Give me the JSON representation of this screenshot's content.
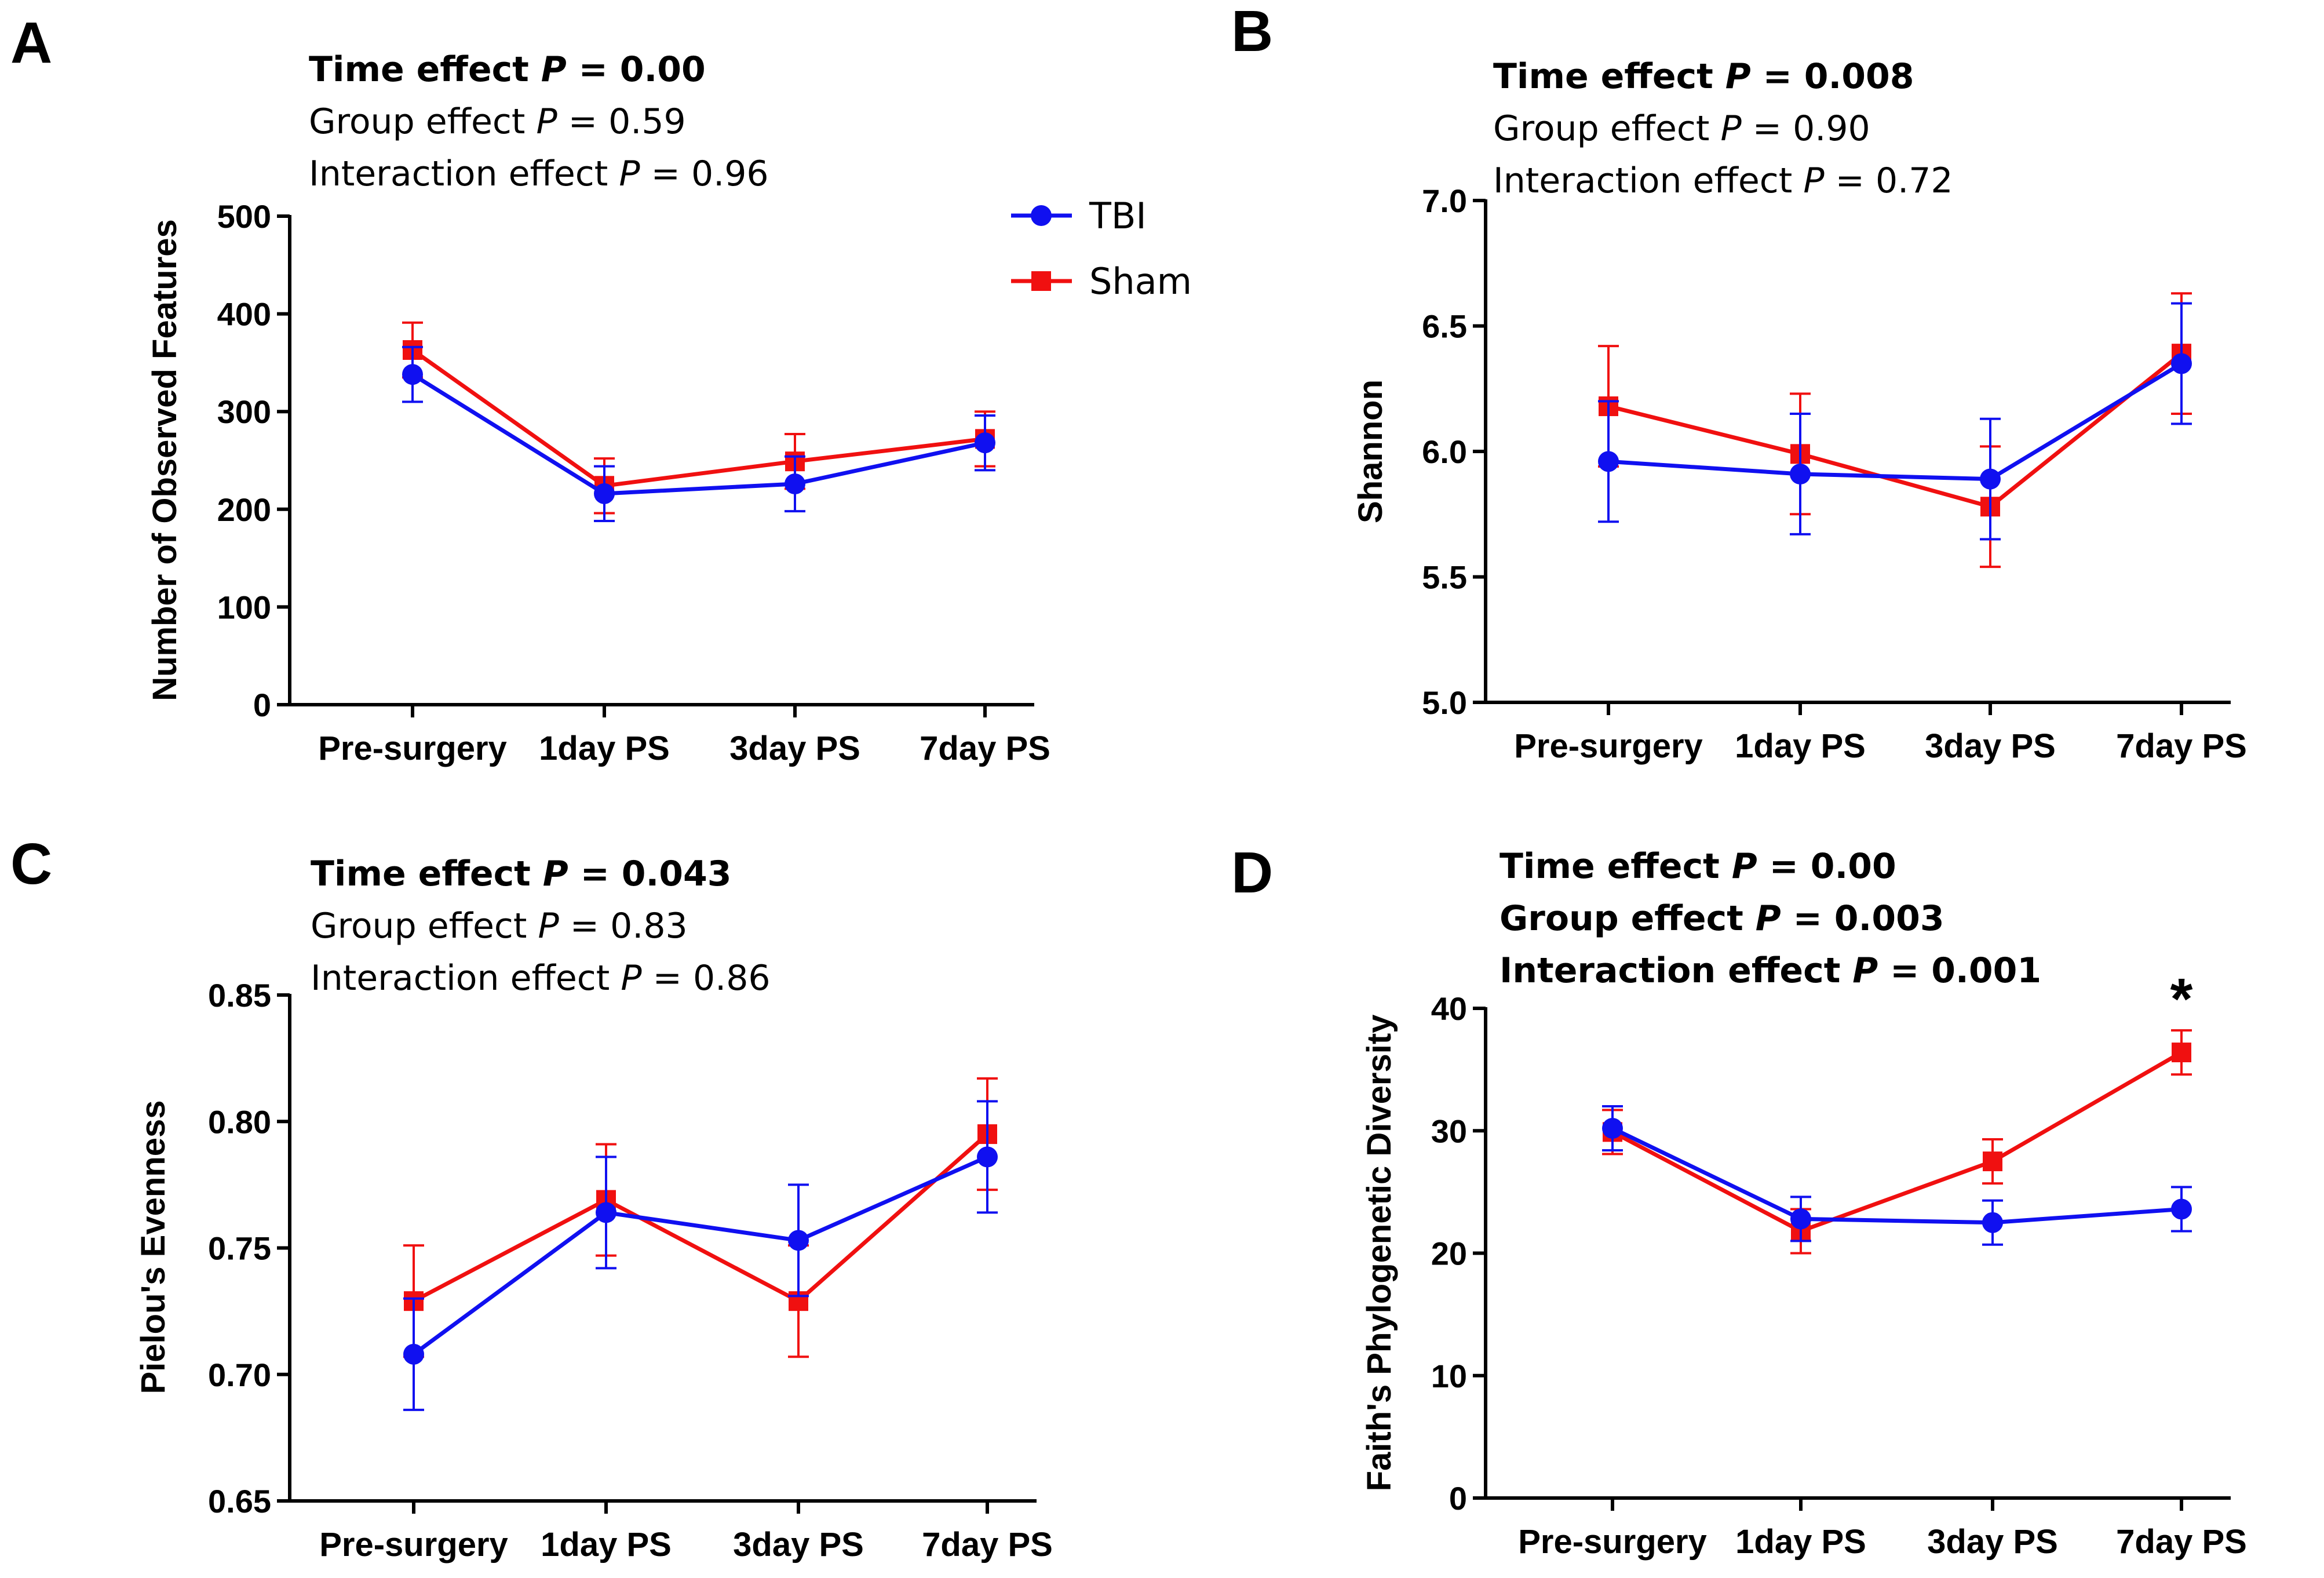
{
  "figure": {
    "legend": {
      "items": [
        {
          "name": "TBI",
          "color": "#1010f0",
          "marker": "circle"
        },
        {
          "name": "Sham",
          "color": "#f01010",
          "marker": "square"
        }
      ]
    }
  },
  "chart_data": [
    {
      "panel": "A",
      "type": "line",
      "title": "",
      "xlabel": "",
      "ylabel": "Number of Observed Features",
      "categories": [
        "Pre-surgery",
        "1day PS",
        "3day PS",
        "7day PS"
      ],
      "ylim": [
        0,
        500
      ],
      "yticks": [
        0,
        100,
        200,
        300,
        400,
        500
      ],
      "ytick_labels": [
        "0",
        "100",
        "200",
        "300",
        "400",
        "500"
      ],
      "series": [
        {
          "name": "TBI",
          "color": "#1010f0",
          "marker": "circle",
          "values": [
            338,
            216,
            226,
            268
          ],
          "errors": [
            28,
            28,
            28,
            28
          ]
        },
        {
          "name": "Sham",
          "color": "#f01010",
          "marker": "square",
          "values": [
            363,
            224,
            249,
            272
          ],
          "errors": [
            28,
            28,
            28,
            28
          ]
        }
      ],
      "stats": [
        {
          "label": "Time effect",
          "p_prefix": "P",
          "value": " = 0.00",
          "bold": true
        },
        {
          "label": "Group effect",
          "p_prefix": "P",
          "value": " = 0.59",
          "bold": false
        },
        {
          "label": "Interaction effect",
          "p_prefix": "P",
          "value": " = 0.96",
          "bold": false
        }
      ],
      "annotations": [],
      "show_legend": true
    },
    {
      "panel": "B",
      "type": "line",
      "title": "",
      "xlabel": "",
      "ylabel": "Shannon",
      "categories": [
        "Pre-surgery",
        "1day PS",
        "3day PS",
        "7day PS"
      ],
      "ylim": [
        5.0,
        7.0
      ],
      "yticks": [
        5.0,
        5.5,
        6.0,
        6.5,
        7.0
      ],
      "ytick_labels": [
        "5.0",
        "5.5",
        "6.0",
        "6.5",
        "7.0"
      ],
      "series": [
        {
          "name": "TBI",
          "color": "#1010f0",
          "marker": "circle",
          "values": [
            5.96,
            5.91,
            5.89,
            6.35
          ],
          "errors": [
            0.24,
            0.24,
            0.24,
            0.24
          ]
        },
        {
          "name": "Sham",
          "color": "#f01010",
          "marker": "square",
          "values": [
            6.18,
            5.99,
            5.78,
            6.39
          ],
          "errors": [
            0.24,
            0.24,
            0.24,
            0.24
          ]
        }
      ],
      "stats": [
        {
          "label": "Time effect",
          "p_prefix": "P",
          "value": " = 0.008",
          "bold": true
        },
        {
          "label": "Group effect",
          "p_prefix": "P",
          "value": " = 0.90",
          "bold": false
        },
        {
          "label": "Interaction effect",
          "p_prefix": "P",
          "value": " = 0.72",
          "bold": false
        }
      ],
      "annotations": [],
      "show_legend": false
    },
    {
      "panel": "C",
      "type": "line",
      "title": "",
      "xlabel": "",
      "ylabel": "Pielou's Evenness",
      "categories": [
        "Pre-surgery",
        "1day PS",
        "3day PS",
        "7day PS"
      ],
      "ylim": [
        0.65,
        0.85
      ],
      "yticks": [
        0.65,
        0.7,
        0.75,
        0.8,
        0.85
      ],
      "ytick_labels": [
        "0.65",
        "0.70",
        "0.75",
        "0.80",
        "0.85"
      ],
      "series": [
        {
          "name": "TBI",
          "color": "#1010f0",
          "marker": "circle",
          "values": [
            0.708,
            0.764,
            0.753,
            0.786
          ],
          "errors": [
            0.022,
            0.022,
            0.022,
            0.022
          ]
        },
        {
          "name": "Sham",
          "color": "#f01010",
          "marker": "square",
          "values": [
            0.729,
            0.769,
            0.729,
            0.795
          ],
          "errors": [
            0.022,
            0.022,
            0.022,
            0.022
          ]
        }
      ],
      "stats": [
        {
          "label": "Time effect",
          "p_prefix": "P",
          "value": " = 0.043",
          "bold": true
        },
        {
          "label": "Group effect",
          "p_prefix": "P",
          "value": " = 0.83",
          "bold": false
        },
        {
          "label": "Interaction effect",
          "p_prefix": "P",
          "value": " = 0.86",
          "bold": false
        }
      ],
      "annotations": [],
      "show_legend": false
    },
    {
      "panel": "D",
      "type": "line",
      "title": "",
      "xlabel": "",
      "ylabel": "Faith's Phylogenetic Diversity",
      "categories": [
        "Pre-surgery",
        "1day PS",
        "3day PS",
        "7day PS"
      ],
      "ylim": [
        0,
        40
      ],
      "yticks": [
        0,
        10,
        20,
        30,
        40
      ],
      "ytick_labels": [
        "0",
        "10",
        "20",
        "30",
        "40"
      ],
      "series": [
        {
          "name": "TBI",
          "color": "#1010f0",
          "marker": "circle",
          "values": [
            30.2,
            22.8,
            22.5,
            23.6
          ],
          "errors": [
            1.8,
            1.8,
            1.8,
            1.8
          ]
        },
        {
          "name": "Sham",
          "color": "#f01010",
          "marker": "square",
          "values": [
            29.9,
            21.8,
            27.5,
            36.4
          ],
          "errors": [
            1.8,
            1.8,
            1.8,
            1.8
          ]
        }
      ],
      "stats": [
        {
          "label": "Time effect ",
          "p_prefix": "P",
          "value": " = 0.00",
          "bold": true
        },
        {
          "label": "Group effect",
          "p_prefix": "P",
          "value": " = 0.003",
          "bold": true
        },
        {
          "label": "Interaction effect",
          "p_prefix": "P",
          "value": " = 0.001",
          "bold": true
        }
      ],
      "annotations": [
        {
          "text": "*",
          "category": "7day PS",
          "value": 36.4
        }
      ],
      "show_legend": false
    }
  ]
}
